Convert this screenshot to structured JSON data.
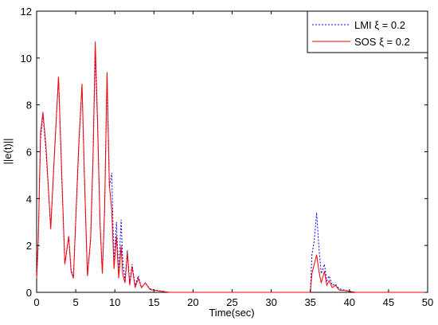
{
  "chart_data": {
    "type": "line",
    "xlabel": "Time(sec)",
    "ylabel": "||e(t)||",
    "xlim": [
      0,
      50
    ],
    "ylim": [
      0,
      12
    ],
    "xticks": [
      0,
      5,
      10,
      15,
      20,
      25,
      30,
      35,
      40,
      45,
      50
    ],
    "yticks": [
      0,
      2,
      4,
      6,
      8,
      10,
      12
    ],
    "grid": false,
    "legend_position": "top-right",
    "series": [
      {
        "name": "LMI ξ = 0.2",
        "color": "#0000ff",
        "style": "dotted",
        "x": [
          0,
          0.2,
          0.5,
          0.8,
          1.2,
          1.8,
          2.3,
          2.8,
          3.2,
          3.6,
          4.1,
          4.4,
          4.7,
          5.0,
          5.4,
          5.8,
          6.1,
          6.5,
          6.9,
          7.2,
          7.5,
          7.8,
          8.1,
          8.4,
          8.7,
          9.0,
          9.3,
          9.6,
          9.9,
          10.2,
          10.5,
          10.8,
          11.0,
          11.3,
          11.6,
          11.9,
          12.2,
          12.6,
          13.0,
          13.4,
          13.9,
          14.5,
          15.2,
          16.0,
          17.0,
          35.0,
          35.2,
          35.5,
          35.8,
          36.1,
          36.4,
          36.8,
          37.1,
          37.4,
          37.8,
          38.2,
          38.7,
          39.3,
          40.0,
          40.8,
          50.0
        ],
        "values": [
          0.6,
          2.0,
          6.5,
          7.6,
          6.0,
          2.8,
          6.0,
          9.2,
          5.0,
          1.2,
          2.4,
          1.0,
          0.6,
          3.0,
          6.2,
          8.8,
          5.0,
          0.7,
          2.2,
          5.5,
          10.1,
          7.0,
          3.0,
          0.8,
          3.5,
          9.3,
          4.5,
          5.1,
          1.2,
          3.0,
          0.8,
          3.1,
          1.4,
          0.5,
          1.8,
          0.4,
          1.2,
          0.3,
          0.7,
          0.2,
          0.4,
          0.15,
          0.1,
          0.05,
          0.0,
          0.0,
          1.6,
          2.2,
          3.4,
          1.9,
          0.8,
          1.2,
          0.5,
          0.7,
          0.3,
          0.35,
          0.15,
          0.1,
          0.05,
          0.0,
          0.0
        ]
      },
      {
        "name": "SOS ξ = 0.2",
        "color": "#ff0000",
        "style": "solid",
        "x": [
          0,
          0.2,
          0.5,
          0.8,
          1.2,
          1.8,
          2.3,
          2.8,
          3.2,
          3.6,
          4.1,
          4.4,
          4.7,
          5.0,
          5.4,
          5.8,
          6.1,
          6.5,
          6.9,
          7.2,
          7.5,
          7.8,
          8.1,
          8.4,
          8.7,
          9.0,
          9.3,
          9.6,
          9.9,
          10.2,
          10.5,
          10.8,
          11.0,
          11.3,
          11.6,
          11.9,
          12.2,
          12.6,
          13.0,
          13.4,
          13.9,
          14.5,
          15.2,
          16.0,
          17.0,
          35.0,
          35.2,
          35.5,
          35.8,
          36.1,
          36.4,
          36.8,
          37.1,
          37.4,
          37.8,
          38.2,
          38.7,
          39.3,
          40.0,
          40.8,
          50.0
        ],
        "values": [
          0.6,
          2.2,
          6.8,
          7.7,
          6.2,
          2.7,
          6.1,
          9.2,
          5.2,
          1.2,
          2.4,
          0.9,
          0.6,
          3.1,
          6.4,
          8.9,
          5.1,
          0.7,
          2.3,
          5.6,
          10.7,
          7.2,
          3.1,
          0.8,
          3.6,
          9.4,
          4.6,
          3.5,
          1.0,
          2.4,
          0.6,
          2.0,
          0.8,
          0.4,
          1.7,
          0.3,
          1.1,
          0.2,
          0.6,
          0.2,
          0.4,
          0.12,
          0.08,
          0.04,
          0.0,
          0.0,
          0.8,
          1.2,
          1.6,
          0.9,
          0.4,
          0.9,
          0.3,
          0.5,
          0.2,
          0.3,
          0.1,
          0.08,
          0.04,
          0.0,
          0.0
        ]
      }
    ]
  }
}
